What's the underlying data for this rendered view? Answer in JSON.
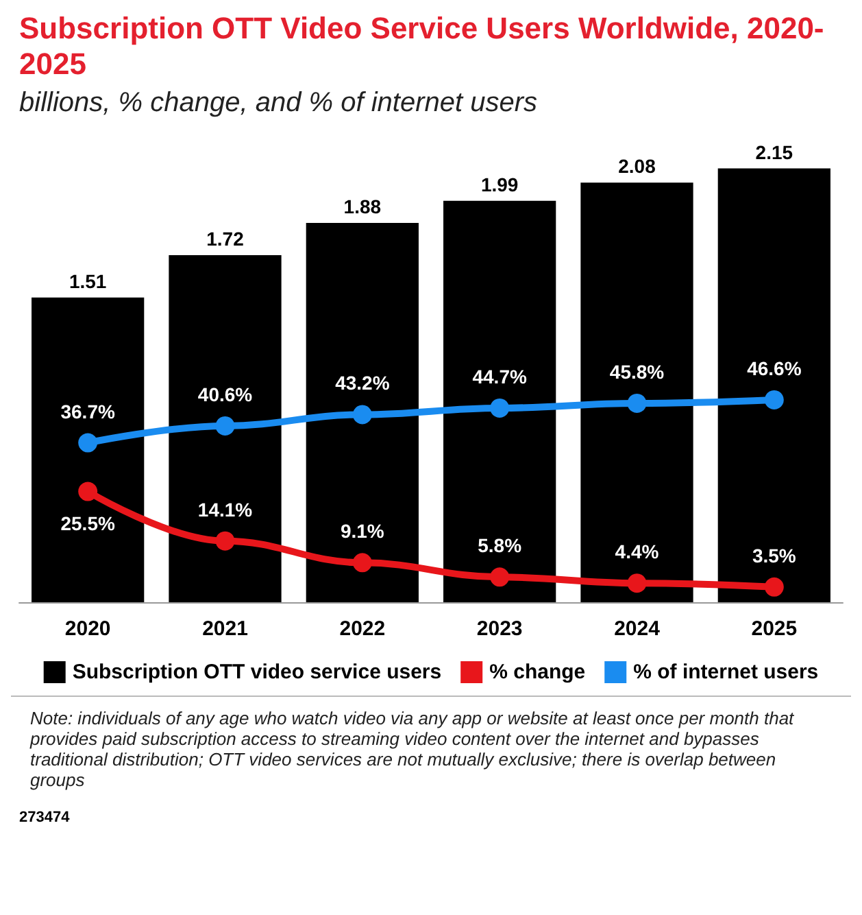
{
  "chart_data": {
    "type": "bar",
    "title": "Subscription OTT Video Service Users Worldwide, 2020-2025",
    "subtitle": "billions, % change, and % of internet users",
    "categories": [
      "2020",
      "2021",
      "2022",
      "2023",
      "2024",
      "2025"
    ],
    "series": [
      {
        "name": "Subscription OTT video service users",
        "color": "#000000",
        "values": [
          1.51,
          1.72,
          1.88,
          1.99,
          2.08,
          2.15
        ],
        "value_labels": [
          "1.51",
          "1.72",
          "1.88",
          "1.99",
          "2.08",
          "2.15"
        ]
      },
      {
        "name": "% change",
        "type": "line",
        "axis": "y2",
        "color": "#e8161b",
        "values": [
          25.5,
          14.1,
          9.1,
          5.8,
          4.4,
          3.5
        ],
        "value_labels": [
          "25.5%",
          "14.1%",
          "9.1%",
          "5.8%",
          "4.4%",
          "3.5%"
        ]
      },
      {
        "name": "% of internet users",
        "type": "line",
        "axis": "y2",
        "color": "#1a8cf0",
        "values": [
          36.7,
          40.6,
          43.2,
          44.7,
          45.8,
          46.6
        ],
        "value_labels": [
          "36.7%",
          "40.6%",
          "43.2%",
          "44.7%",
          "45.8%",
          "46.6%"
        ]
      }
    ],
    "tick_labels": "x",
    "marker": "circle",
    "legend": "bottom",
    "grid": false,
    "annotations": [
      "Note: individuals of any age who watch video via any app or website at least once per month that provides paid subscription access to streaming video content over the internet and bypasses traditional distribution; OTT video services are not mutually exclusive; there is overlap between groups",
      "273474"
    ]
  }
}
